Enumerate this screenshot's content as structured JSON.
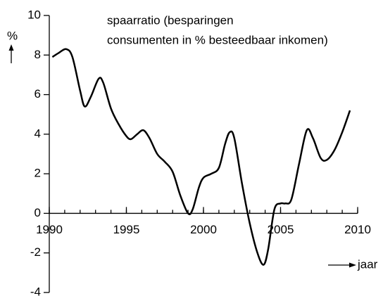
{
  "chart_data": {
    "type": "line",
    "title": [
      "spaarratio (besparingen",
      "consumenten in % besteedbaar inkomen)"
    ],
    "ylabel": "%",
    "xlabel": "jaar",
    "x": [
      1990.2,
      1990.6,
      1991.1,
      1991.5,
      1992,
      1992.3,
      1992.7,
      1993.2,
      1993.5,
      1994,
      1994.5,
      1995,
      1995.3,
      1995.7,
      1996.1,
      1996.5,
      1997,
      1997.5,
      1998,
      1998.5,
      1999,
      1999.3,
      1999.7,
      2000,
      2000.5,
      2001,
      2001.4,
      2001.7,
      2002,
      2002.5,
      2003,
      2003.5,
      2003.9,
      2004.2,
      2004.6,
      2005,
      2005.3,
      2005.7,
      2006.2,
      2006.7,
      2007.1,
      2007.6,
      2008,
      2008.5,
      2009,
      2009.5
    ],
    "series": [
      {
        "name": "spaarratio",
        "color": "#000000",
        "values": [
          7.9,
          8.1,
          8.3,
          7.9,
          6.2,
          5.4,
          5.9,
          6.8,
          6.6,
          5.3,
          4.5,
          3.9,
          3.75,
          4.0,
          4.2,
          3.8,
          3.0,
          2.6,
          2.1,
          0.9,
          0.0,
          0.2,
          1.3,
          1.8,
          2.0,
          2.3,
          3.5,
          4.1,
          3.8,
          1.5,
          -0.5,
          -2.0,
          -2.6,
          -1.8,
          0.2,
          0.5,
          0.5,
          0.7,
          2.5,
          4.2,
          3.8,
          2.8,
          2.7,
          3.2,
          4.1,
          5.2
        ]
      }
    ],
    "xlim": [
      1990,
      2010
    ],
    "xticks": [
      1990,
      1995,
      2000,
      2005,
      2010
    ],
    "ylim": [
      -4,
      10
    ],
    "yticks": [
      -4,
      -2,
      0,
      2,
      4,
      6,
      8,
      10
    ]
  }
}
